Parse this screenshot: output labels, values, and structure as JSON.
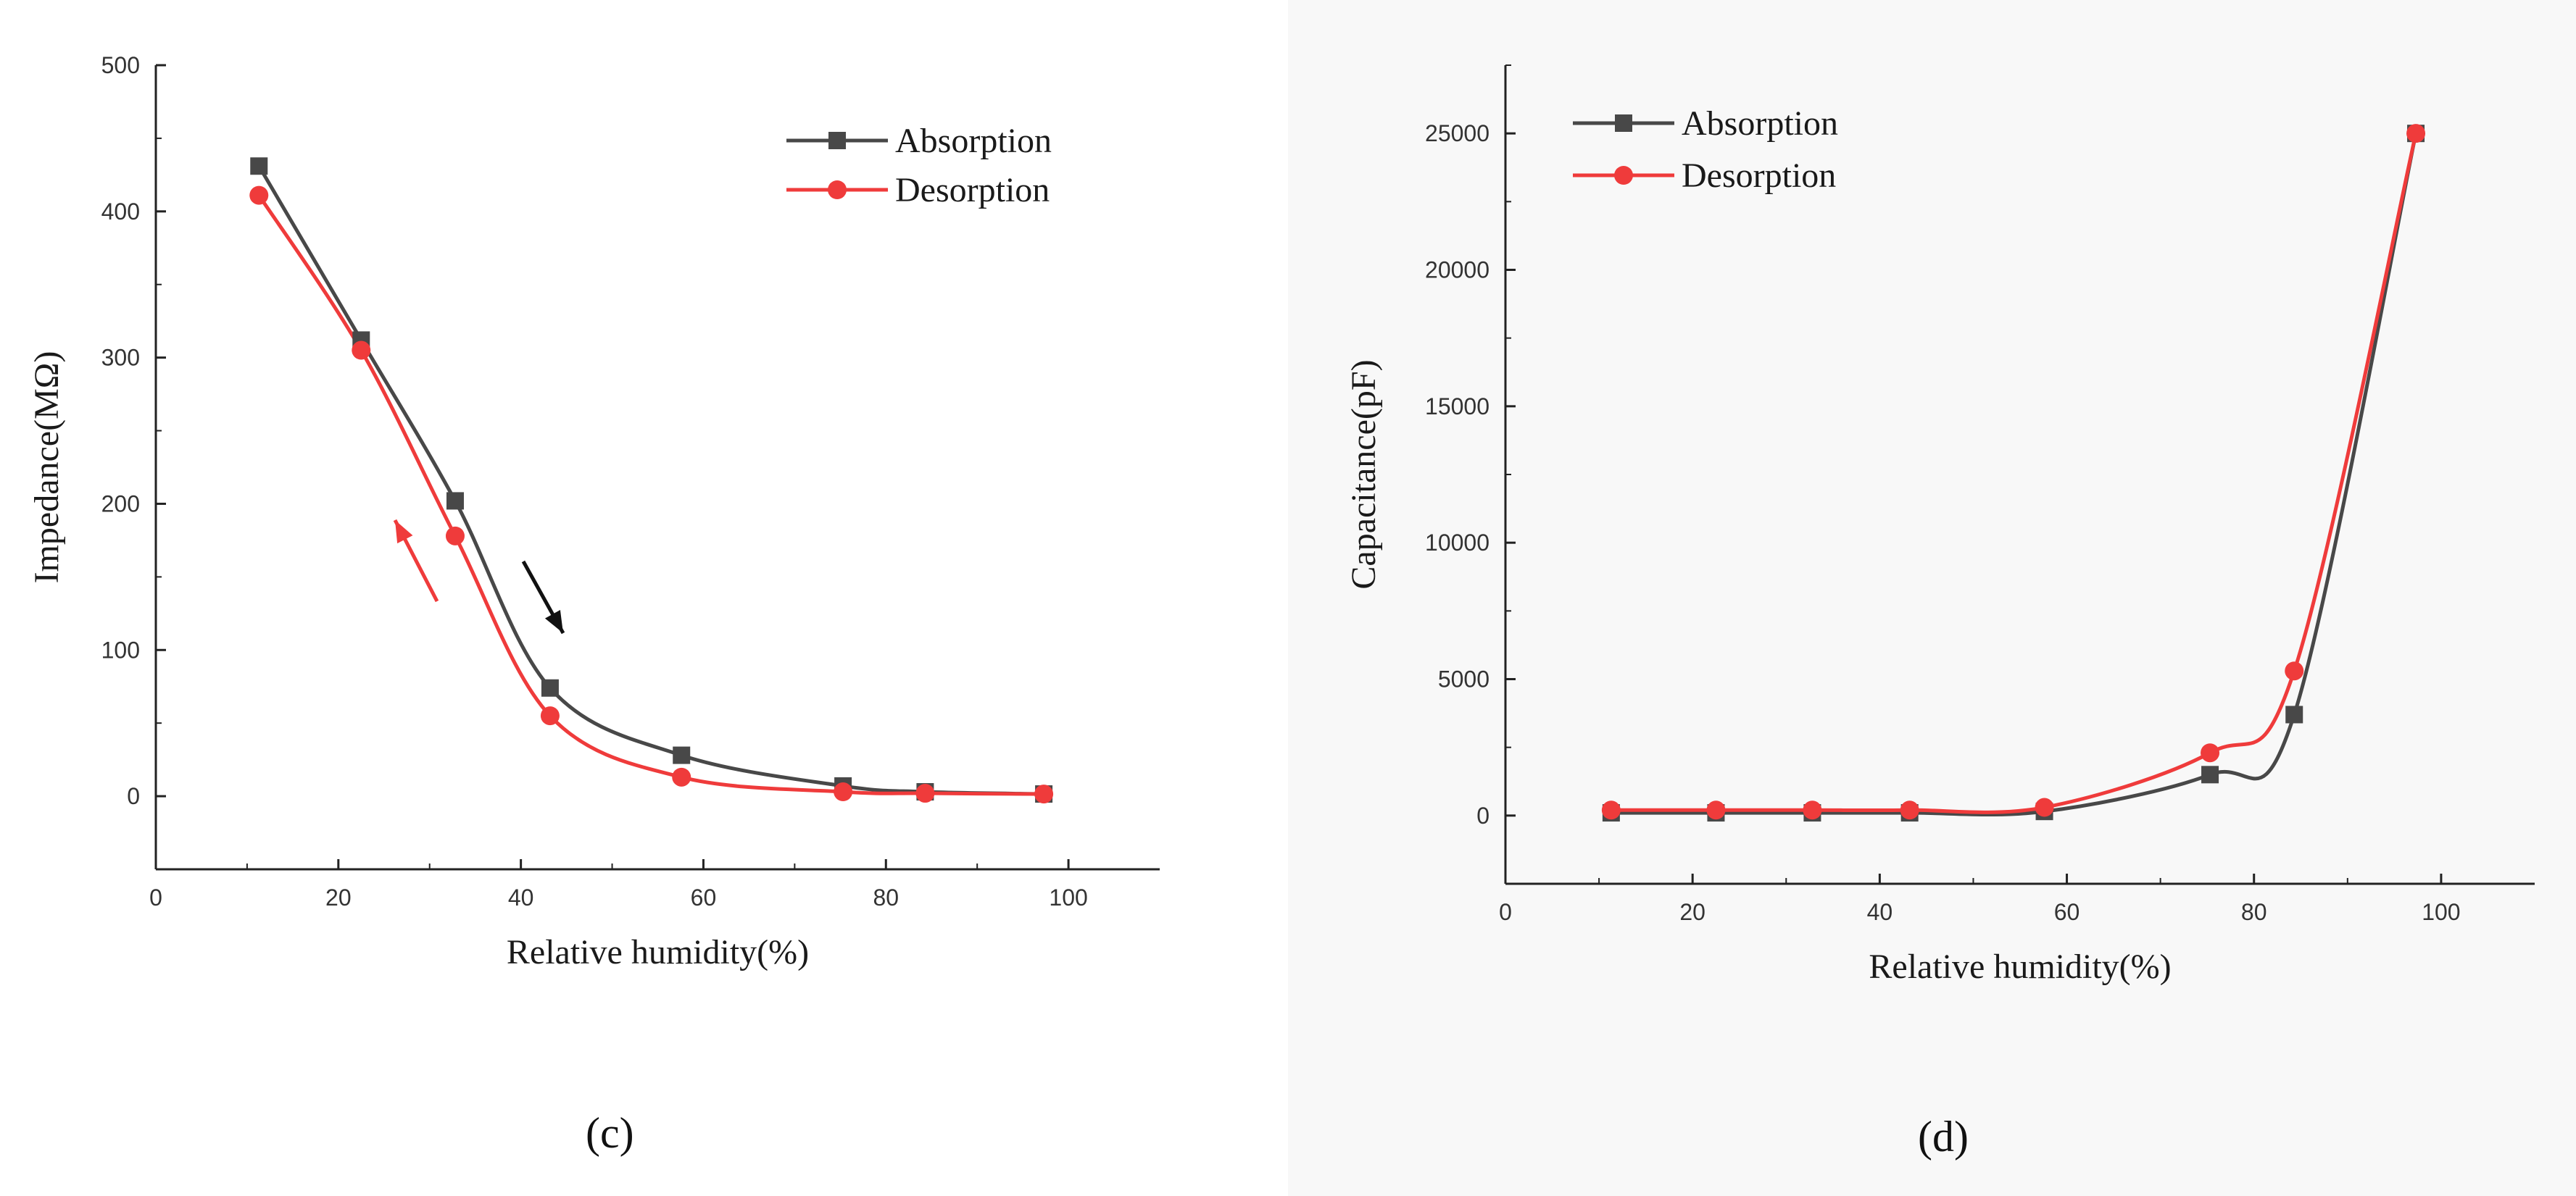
{
  "chart_data": [
    {
      "panel_label": "(c)",
      "type": "line",
      "xlabel": "Relative humidity(%)",
      "ylabel": "Impedance(MΩ)",
      "xlim": [
        0,
        110
      ],
      "ylim": [
        -50,
        500
      ],
      "xticks": [
        0,
        20,
        40,
        60,
        80,
        100
      ],
      "yticks": [
        0,
        100,
        200,
        300,
        400,
        500
      ],
      "legend_position": "top-right",
      "annotations": [
        "red arrow pointing up-left (desorption direction)",
        "black arrow pointing down-right (absorption direction)"
      ],
      "series": [
        {
          "name": "Absorption",
          "marker": "square",
          "color": "#484848",
          "x": [
            11.3,
            22.5,
            32.8,
            43.2,
            57.6,
            75.3,
            84.3,
            97.3
          ],
          "y": [
            431,
            312,
            202,
            74,
            28,
            7,
            3,
            1.5
          ]
        },
        {
          "name": "Desorption",
          "marker": "circle",
          "color": "#ef3b3b",
          "x": [
            11.3,
            22.5,
            32.8,
            43.2,
            57.6,
            75.3,
            84.3,
            97.3
          ],
          "y": [
            411,
            305,
            178,
            55,
            13,
            3,
            2,
            1.5
          ]
        }
      ]
    },
    {
      "panel_label": "(d)",
      "type": "line",
      "xlabel": "Relative humidity(%)",
      "ylabel": "Capacitance(pF)",
      "xlim": [
        0,
        110
      ],
      "ylim": [
        -2500,
        27500
      ],
      "xticks": [
        0,
        20,
        40,
        60,
        80,
        100
      ],
      "yticks": [
        0,
        5000,
        10000,
        15000,
        20000,
        25000
      ],
      "legend_position": "top-left",
      "series": [
        {
          "name": "Absorption",
          "marker": "square",
          "color": "#484848",
          "x": [
            11.3,
            22.5,
            32.8,
            43.2,
            57.6,
            75.3,
            84.3,
            97.3
          ],
          "y": [
            100,
            100,
            100,
            100,
            150,
            1500,
            3700,
            25000
          ]
        },
        {
          "name": "Desorption",
          "marker": "circle",
          "color": "#ef3b3b",
          "x": [
            11.3,
            22.5,
            32.8,
            43.2,
            57.6,
            75.3,
            84.3,
            97.3
          ],
          "y": [
            200,
            200,
            200,
            200,
            300,
            2300,
            5300,
            25000
          ]
        }
      ]
    }
  ]
}
